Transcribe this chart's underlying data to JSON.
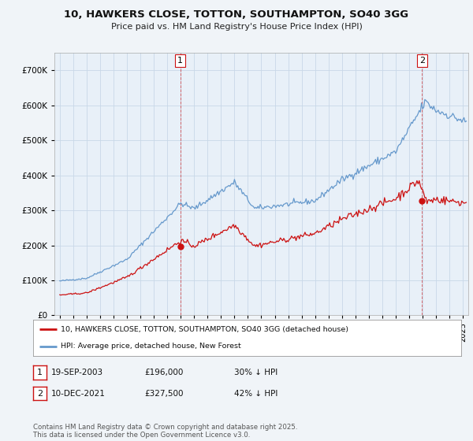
{
  "title": "10, HAWKERS CLOSE, TOTTON, SOUTHAMPTON, SO40 3GG",
  "subtitle": "Price paid vs. HM Land Registry's House Price Index (HPI)",
  "ylim": [
    0,
    750000
  ],
  "yticks": [
    0,
    100000,
    200000,
    300000,
    400000,
    500000,
    600000,
    700000
  ],
  "background_color": "#f0f4f8",
  "plot_bg_color": "#e8f0f8",
  "grid_color": "#c8d8e8",
  "hpi_color": "#6699cc",
  "price_color": "#cc1111",
  "marker1_date": 2003.97,
  "marker1_price": 196000,
  "marker2_date": 2021.95,
  "marker2_price": 327500,
  "legend_line1": "10, HAWKERS CLOSE, TOTTON, SOUTHAMPTON, SO40 3GG (detached house)",
  "legend_line2": "HPI: Average price, detached house, New Forest",
  "footer": "Contains HM Land Registry data © Crown copyright and database right 2025.\nThis data is licensed under the Open Government Licence v3.0.",
  "xticks": [
    1995,
    1996,
    1997,
    1998,
    1999,
    2000,
    2001,
    2002,
    2003,
    2004,
    2005,
    2006,
    2007,
    2008,
    2009,
    2010,
    2011,
    2012,
    2013,
    2014,
    2015,
    2016,
    2017,
    2018,
    2019,
    2020,
    2021,
    2022,
    2023,
    2024,
    2025
  ],
  "xlim": [
    1994.6,
    2025.4
  ]
}
